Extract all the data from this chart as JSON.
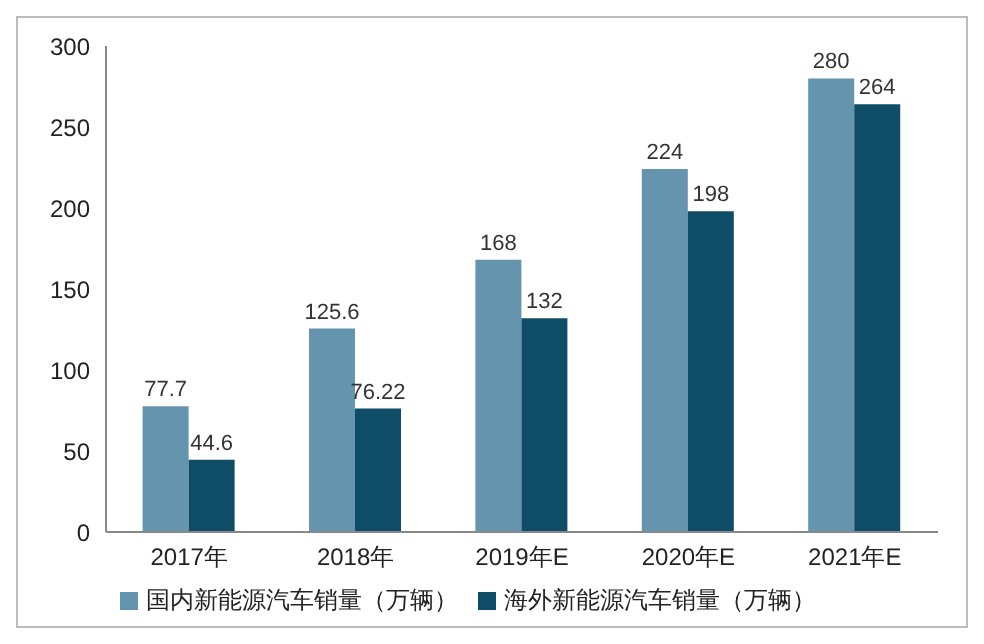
{
  "chart_data": {
    "type": "bar",
    "categories": [
      "2017年",
      "2018年",
      "2019年E",
      "2020年E",
      "2021年E"
    ],
    "series": [
      {
        "name": "国内新能源汽车销量（万辆）",
        "color": "#6594ae",
        "values": [
          77.7,
          125.6,
          168,
          224,
          280
        ]
      },
      {
        "name": "海外新能源汽车销量（万辆）",
        "color": "#0e4c68",
        "values": [
          44.6,
          76.22,
          132,
          198,
          264
        ]
      }
    ],
    "ylim": [
      0,
      300
    ],
    "yticks": [
      0,
      50,
      100,
      150,
      200,
      250,
      300
    ],
    "grid": false,
    "legend": "bottom",
    "data_labels": true
  }
}
